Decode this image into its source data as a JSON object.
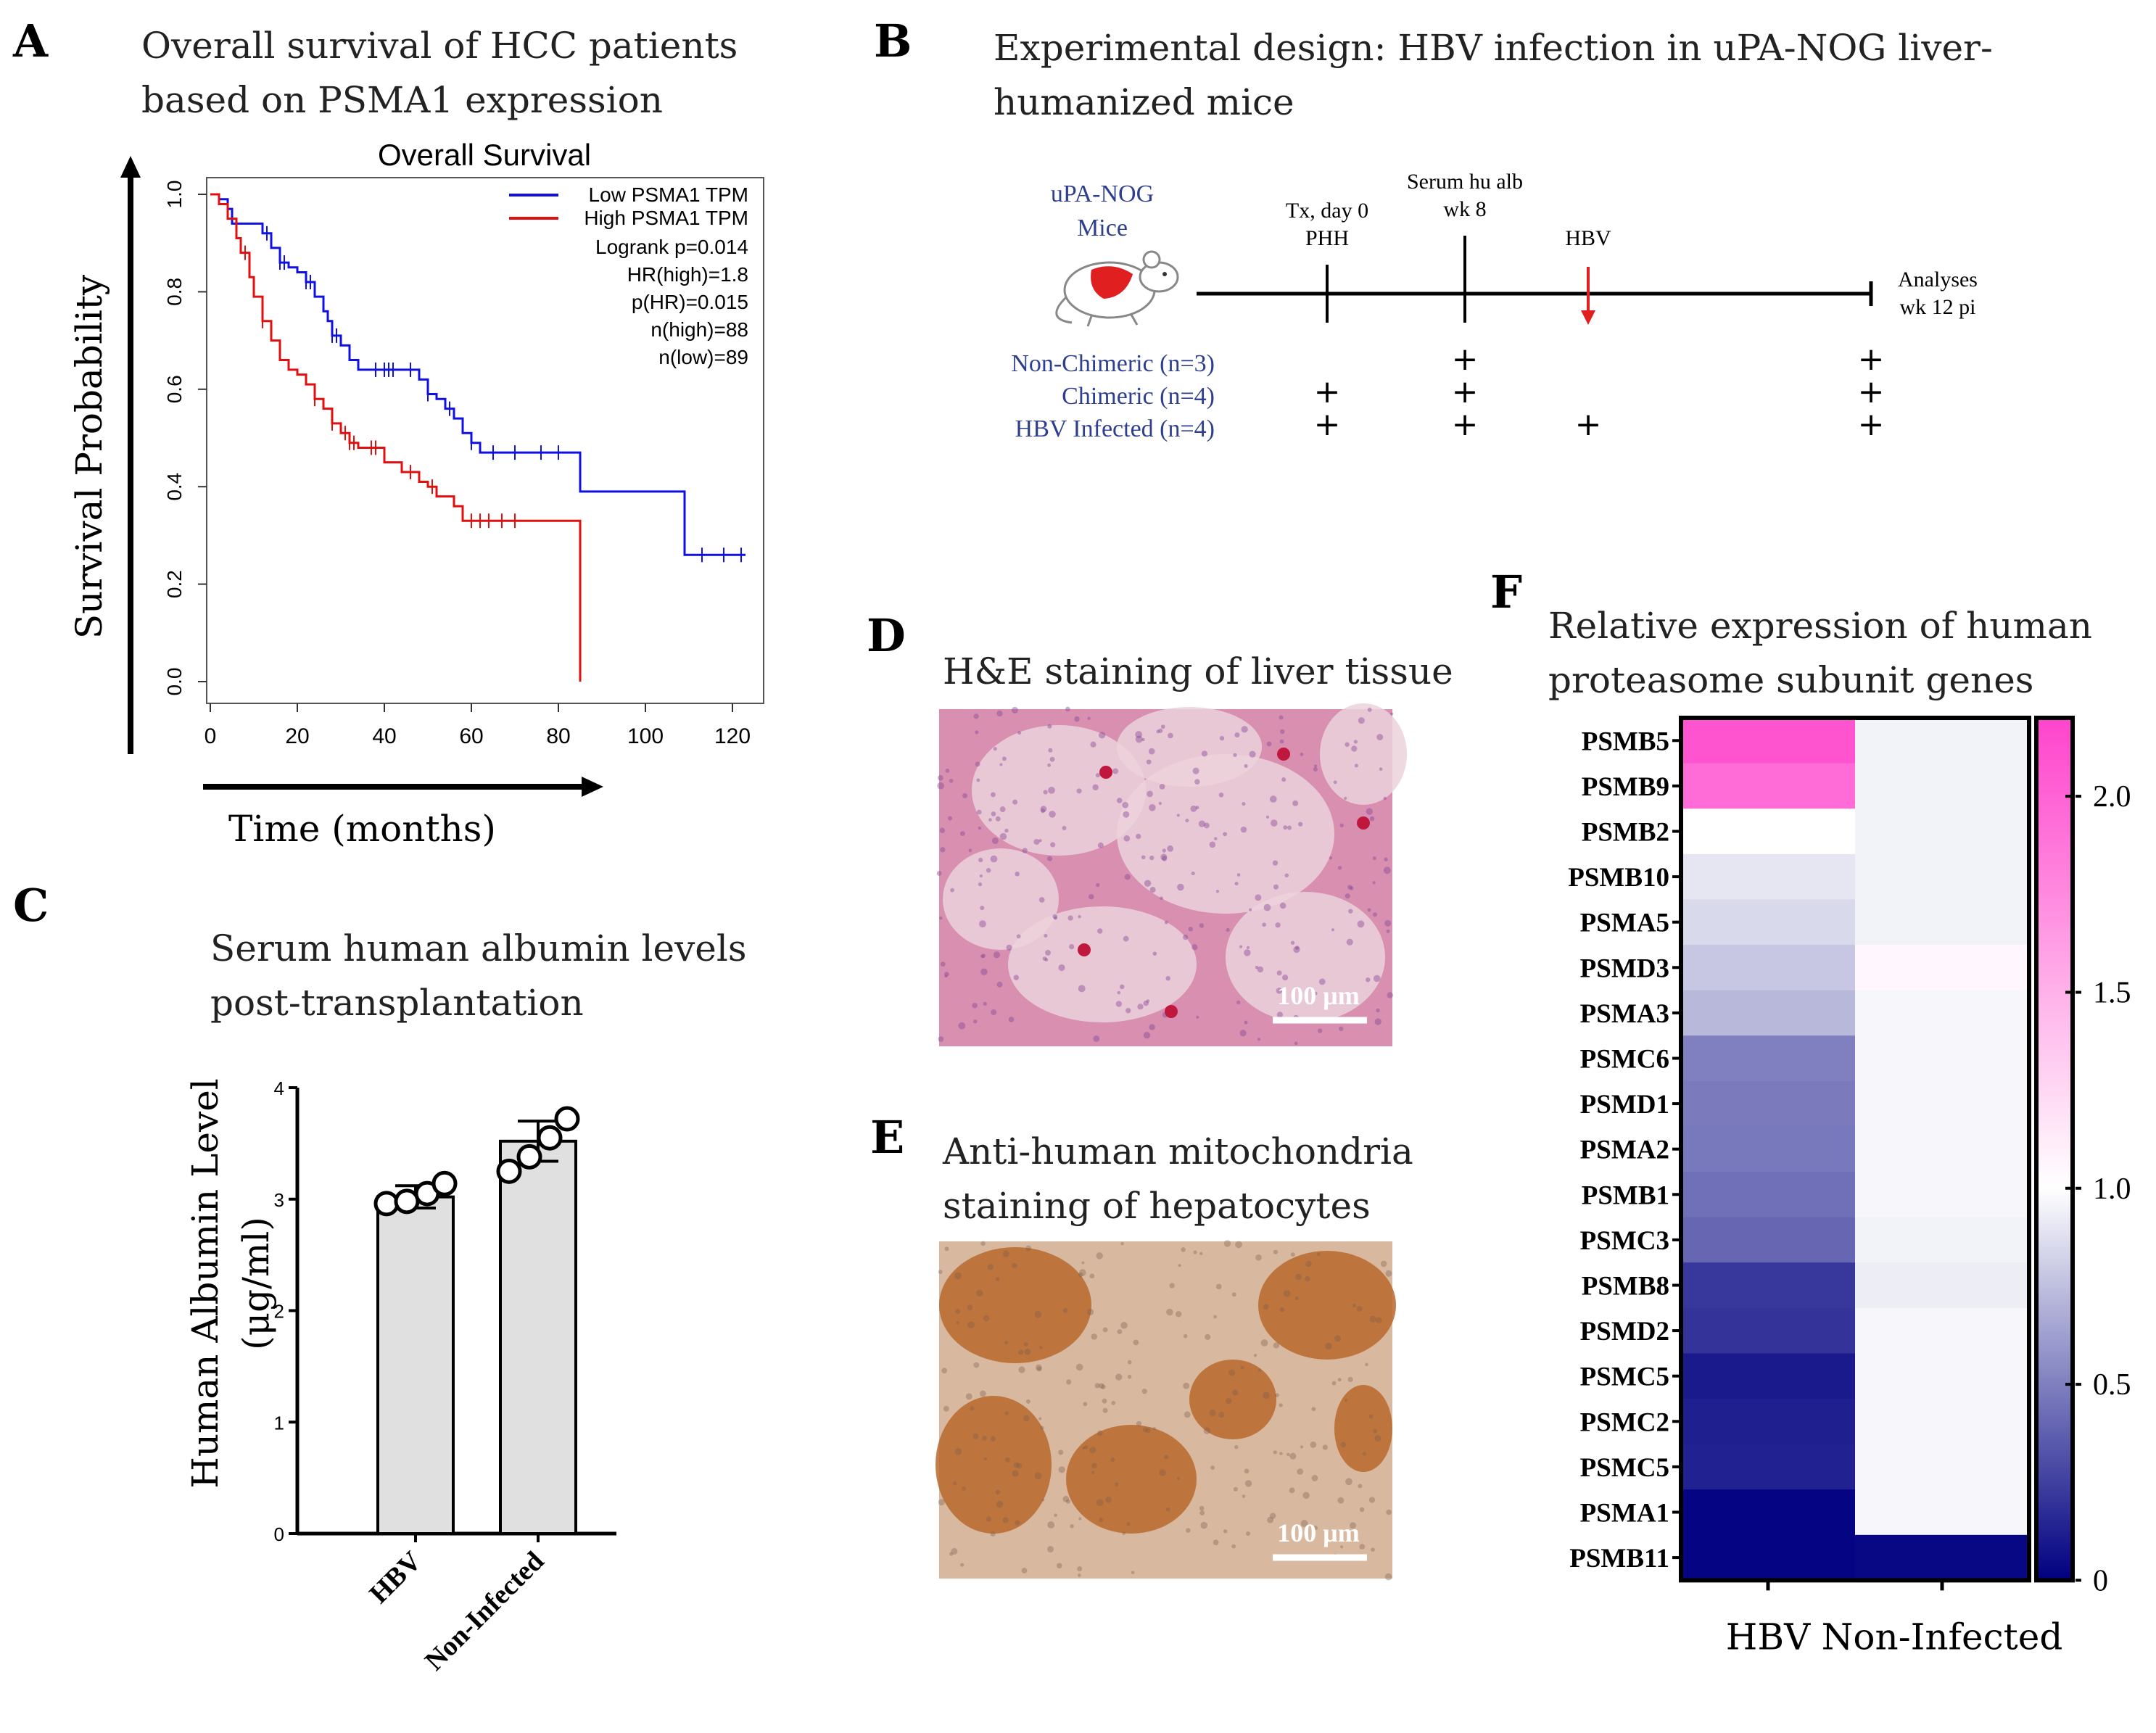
{
  "panels": {
    "A": {
      "letter": "A",
      "title_line1": "Overall survival of HCC patients",
      "title_line2": "based on PSMA1 expression",
      "ylabel": "Survival Probability",
      "xlabel": "Time (months)",
      "plot_title": "Overall Survival"
    },
    "B": {
      "letter": "B",
      "title_line1": "Experimental design: HBV infection in uPA-NOG liver-",
      "title_line2": "humanized mice",
      "mice_label_1": "uPA-NOG",
      "mice_label_2": "Mice",
      "events": [
        {
          "line1": "Tx, day 0",
          "line2": "PHH"
        },
        {
          "line1": "Serum hu alb",
          "line2": "wk 8"
        },
        {
          "line1": "HBV",
          "line2": ""
        },
        {
          "line1": "Analyses",
          "line2": "wk 12 pi"
        }
      ],
      "groups": [
        {
          "label": "Non-Chimeric (n=3)",
          "marks": [
            false,
            true,
            false,
            true
          ]
        },
        {
          "label": "Chimeric (n=4)",
          "marks": [
            true,
            true,
            false,
            true
          ]
        },
        {
          "label": "HBV Infected (n=4)",
          "marks": [
            true,
            true,
            true,
            true
          ]
        }
      ],
      "plus": "+",
      "colors": {
        "group_text": "#2e3f8f",
        "arrow": "#e02020",
        "liver": "#e02020"
      }
    },
    "C": {
      "letter": "C",
      "title_line1": "Serum human albumin levels",
      "title_line2": "post-transplantation",
      "ylabel_line1": "Human Albumin Level",
      "ylabel_line2": "(μg/ml)"
    },
    "D": {
      "letter": "D",
      "title": "H&E staining of liver tissue",
      "scale_bar": "100 μm",
      "colors": {
        "base": "#d88fb0",
        "pale": "#ecd2dc",
        "spot": "#c0183c"
      }
    },
    "E": {
      "letter": "E",
      "title_line1": "Anti-human mitochondria",
      "title_line2": "staining of hepatocytes",
      "scale_bar": "100 μm",
      "colors": {
        "base": "#d8b9a0",
        "stain": "#b8682c"
      }
    },
    "F": {
      "letter": "F",
      "title_line1": "Relative expression of human",
      "title_line2": "proteasome subunit genes"
    }
  },
  "chart_data": [
    {
      "id": "A",
      "type": "line",
      "title": "Overall Survival",
      "xlabel": "Time (months)",
      "ylabel": "Survival Probability",
      "xlim": [
        0,
        125
      ],
      "ylim": [
        0,
        1.0
      ],
      "xticks": [
        0,
        20,
        40,
        60,
        80,
        100,
        120
      ],
      "yticks": [
        0.0,
        0.2,
        0.4,
        0.6,
        0.8,
        1.0
      ],
      "legend": [
        "Low PSMA1 TPM",
        "High PSMA1 TPM"
      ],
      "stats": [
        "Logrank p=0.014",
        "HR(high)=1.8",
        "p(HR)=0.015",
        "n(high)=88",
        "n(low)=89"
      ],
      "series": [
        {
          "name": "Low PSMA1 TPM",
          "color": "#1010e0",
          "x": [
            0,
            2,
            4,
            5,
            8,
            12,
            14,
            16,
            18,
            20,
            22,
            24,
            26,
            27,
            28,
            30,
            32,
            34,
            36,
            40,
            44,
            48,
            50,
            52,
            54,
            56,
            58,
            60,
            62,
            66,
            70,
            76,
            82,
            85,
            90,
            100,
            109,
            115,
            120,
            123
          ],
          "y": [
            1.0,
            0.99,
            0.97,
            0.94,
            0.94,
            0.92,
            0.89,
            0.86,
            0.85,
            0.84,
            0.82,
            0.79,
            0.76,
            0.74,
            0.71,
            0.69,
            0.66,
            0.64,
            0.64,
            0.64,
            0.64,
            0.62,
            0.59,
            0.58,
            0.56,
            0.54,
            0.51,
            0.49,
            0.47,
            0.47,
            0.47,
            0.47,
            0.47,
            0.39,
            0.39,
            0.39,
            0.26,
            0.26,
            0.26,
            0.26
          ],
          "censor": [
            13,
            16,
            17,
            22,
            23,
            28,
            29,
            38,
            40,
            41,
            42,
            46,
            50,
            55,
            60,
            65,
            70,
            76,
            80,
            113,
            118,
            122
          ]
        },
        {
          "name": "High PSMA1 TPM",
          "color": "#e01010",
          "x": [
            0,
            2,
            4,
            6,
            7,
            9,
            10,
            12,
            14,
            16,
            18,
            20,
            22,
            24,
            26,
            28,
            30,
            32,
            34,
            36,
            40,
            44,
            48,
            50,
            52,
            56,
            58,
            60,
            64,
            70,
            80,
            85
          ],
          "y": [
            1.0,
            0.98,
            0.95,
            0.91,
            0.88,
            0.83,
            0.79,
            0.74,
            0.7,
            0.66,
            0.64,
            0.63,
            0.61,
            0.58,
            0.56,
            0.53,
            0.51,
            0.49,
            0.48,
            0.48,
            0.45,
            0.43,
            0.41,
            0.4,
            0.38,
            0.36,
            0.33,
            0.33,
            0.33,
            0.33,
            0.33,
            0.0
          ],
          "censor": [
            8,
            12,
            24,
            28,
            31,
            32,
            33,
            37,
            38,
            46,
            51,
            60,
            62,
            64,
            67,
            70
          ]
        }
      ]
    },
    {
      "id": "C",
      "type": "bar",
      "categories": [
        "HBV",
        "Non-Infected"
      ],
      "values": [
        3.02,
        3.52
      ],
      "errors": [
        0.1,
        0.18
      ],
      "points": [
        [
          2.96,
          2.98,
          3.05,
          3.14
        ],
        [
          3.25,
          3.38,
          3.55,
          3.72
        ]
      ],
      "ylim": [
        0,
        4
      ],
      "yticks": [
        0,
        1,
        2,
        3,
        4
      ],
      "ylabel": "Human Albumin Level (μg/ml)",
      "bar_color": "#e0e0e0"
    },
    {
      "id": "F",
      "type": "heatmap",
      "rows": [
        "PSMB5",
        "PSMB9",
        "PSMB2",
        "PSMB10",
        "PSMA5",
        "PSMD3",
        "PSMA3",
        "PSMC6",
        "PSMD1",
        "PSMA2",
        "PSMB1",
        "PSMC3",
        "PSMB8",
        "PSMD2",
        "PSMC5",
        "PSMC2",
        "PSMC5",
        "PSMA1",
        "PSMB11"
      ],
      "columns": [
        "HBV",
        "Non-Infected"
      ],
      "values": [
        [
          2.1,
          0.95
        ],
        [
          1.95,
          0.95
        ],
        [
          1.0,
          0.95
        ],
        [
          0.9,
          0.95
        ],
        [
          0.85,
          0.95
        ],
        [
          0.78,
          1.05
        ],
        [
          0.72,
          0.97
        ],
        [
          0.5,
          0.97
        ],
        [
          0.48,
          0.97
        ],
        [
          0.47,
          0.97
        ],
        [
          0.44,
          0.97
        ],
        [
          0.4,
          0.95
        ],
        [
          0.22,
          0.93
        ],
        [
          0.2,
          0.97
        ],
        [
          0.1,
          0.97
        ],
        [
          0.12,
          0.97
        ],
        [
          0.13,
          0.97
        ],
        [
          0.02,
          0.97
        ],
        [
          0.02,
          0.03
        ]
      ],
      "colorbar_range": [
        0,
        2.2
      ],
      "colorbar_ticks": [
        0,
        0.5,
        1.0,
        1.5,
        2.0
      ],
      "colorbar_tick_labels": [
        "0",
        "0.5",
        "1.0",
        "1.5",
        "2.0"
      ],
      "colormap": [
        "#000080",
        "#ffffff",
        "#ff44cc"
      ]
    }
  ]
}
